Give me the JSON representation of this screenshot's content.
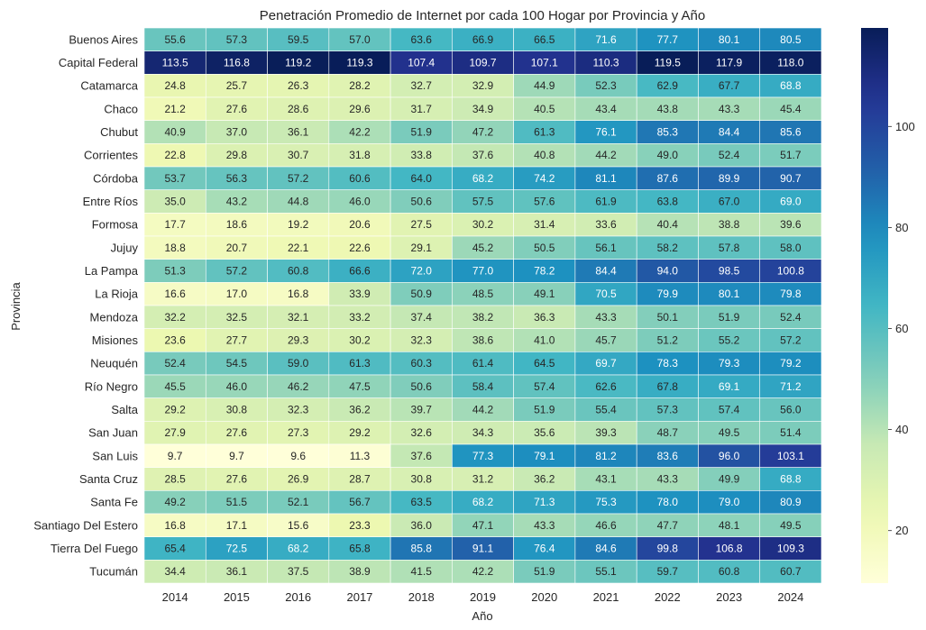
{
  "chart_data": {
    "type": "heatmap",
    "title": "Penetración Promedio de Internet por cada 100 Hogar por Provincia y Año",
    "xlabel": "Año",
    "ylabel": "Provincia",
    "x": [
      "2014",
      "2015",
      "2016",
      "2017",
      "2018",
      "2019",
      "2020",
      "2021",
      "2022",
      "2023",
      "2024"
    ],
    "y": [
      "Buenos Aires",
      "Capital Federal",
      "Catamarca",
      "Chaco",
      "Chubut",
      "Corrientes",
      "Córdoba",
      "Entre Ríos",
      "Formosa",
      "Jujuy",
      "La Pampa",
      "La Rioja",
      "Mendoza",
      "Misiones",
      "Neuquén",
      "Río Negro",
      "Salta",
      "San Juan",
      "San Luis",
      "Santa Cruz",
      "Santa Fe",
      "Santiago Del Estero",
      "Tierra Del Fuego",
      "Tucumán"
    ],
    "values": [
      [
        55.6,
        57.3,
        59.5,
        57.0,
        63.6,
        66.9,
        66.5,
        71.6,
        77.7,
        80.1,
        80.5
      ],
      [
        113.5,
        116.8,
        119.2,
        119.3,
        107.4,
        109.7,
        107.1,
        110.3,
        119.5,
        117.9,
        118.0
      ],
      [
        24.8,
        25.7,
        26.3,
        28.2,
        32.7,
        32.9,
        44.9,
        52.3,
        62.9,
        67.7,
        68.8
      ],
      [
        21.2,
        27.6,
        28.6,
        29.6,
        31.7,
        34.9,
        40.5,
        43.4,
        43.8,
        43.3,
        45.4
      ],
      [
        40.9,
        37.0,
        36.1,
        42.2,
        51.9,
        47.2,
        61.3,
        76.1,
        85.3,
        84.4,
        85.6
      ],
      [
        22.8,
        29.8,
        30.7,
        31.8,
        33.8,
        37.6,
        40.8,
        44.2,
        49.0,
        52.4,
        51.7
      ],
      [
        53.7,
        56.3,
        57.2,
        60.6,
        64.0,
        68.2,
        74.2,
        81.1,
        87.6,
        89.9,
        90.7
      ],
      [
        35.0,
        43.2,
        44.8,
        46.0,
        50.6,
        57.5,
        57.6,
        61.9,
        63.8,
        67.0,
        69.0
      ],
      [
        17.7,
        18.6,
        19.2,
        20.6,
        27.5,
        30.2,
        31.4,
        33.6,
        40.4,
        38.8,
        39.6
      ],
      [
        18.8,
        20.7,
        22.1,
        22.6,
        29.1,
        45.2,
        50.5,
        56.1,
        58.2,
        57.8,
        58.0
      ],
      [
        51.3,
        57.2,
        60.8,
        66.6,
        72.0,
        77.0,
        78.2,
        84.4,
        94.0,
        98.5,
        100.8
      ],
      [
        16.6,
        17.0,
        16.8,
        33.9,
        50.9,
        48.5,
        49.1,
        70.5,
        79.9,
        80.1,
        79.8
      ],
      [
        32.2,
        32.5,
        32.1,
        33.2,
        37.4,
        38.2,
        36.3,
        43.3,
        50.1,
        51.9,
        52.4
      ],
      [
        23.6,
        27.7,
        29.3,
        30.2,
        32.3,
        38.6,
        41.0,
        45.7,
        51.2,
        55.2,
        57.2
      ],
      [
        52.4,
        54.5,
        59.0,
        61.3,
        60.3,
        61.4,
        64.5,
        69.7,
        78.3,
        79.3,
        79.2
      ],
      [
        45.5,
        46.0,
        46.2,
        47.5,
        50.6,
        58.4,
        57.4,
        62.6,
        67.8,
        69.1,
        71.2
      ],
      [
        29.2,
        30.8,
        32.3,
        36.2,
        39.7,
        44.2,
        51.9,
        55.4,
        57.3,
        57.4,
        56.0
      ],
      [
        27.9,
        27.6,
        27.3,
        29.2,
        32.6,
        34.3,
        35.6,
        39.3,
        48.7,
        49.5,
        51.4
      ],
      [
        9.7,
        9.7,
        9.6,
        11.3,
        37.6,
        77.3,
        79.1,
        81.2,
        83.6,
        96.0,
        103.1
      ],
      [
        28.5,
        27.6,
        26.9,
        28.7,
        30.8,
        31.2,
        36.2,
        43.1,
        43.3,
        49.9,
        68.8
      ],
      [
        49.2,
        51.5,
        52.1,
        56.7,
        63.5,
        68.2,
        71.3,
        75.3,
        78.0,
        79.0,
        80.9
      ],
      [
        16.8,
        17.1,
        15.6,
        23.3,
        36.0,
        47.1,
        43.3,
        46.6,
        47.7,
        48.1,
        49.5
      ],
      [
        65.4,
        72.5,
        68.2,
        65.8,
        85.8,
        91.1,
        76.4,
        84.6,
        99.8,
        106.8,
        109.3
      ],
      [
        34.4,
        36.1,
        37.5,
        38.9,
        41.5,
        42.2,
        51.9,
        55.1,
        59.7,
        60.8,
        60.7
      ]
    ],
    "colormap": "YlGnBu",
    "vmin": 9.6,
    "vmax": 119.5,
    "colorbar_ticks": [
      20,
      40,
      60,
      80,
      100
    ],
    "annotations_format": "{:.1f}"
  }
}
